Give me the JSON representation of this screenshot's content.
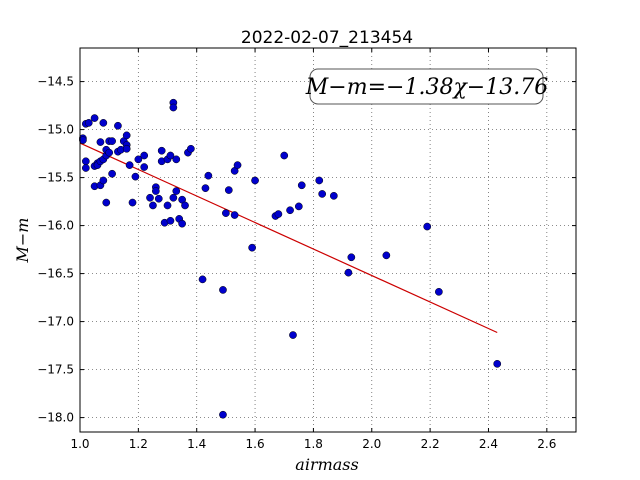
{
  "chart_data": {
    "type": "scatter",
    "title": "2022-02-07_213454",
    "xlabel": "airmass",
    "ylabel": "M−m",
    "xlim": [
      1.0,
      2.7
    ],
    "ylim": [
      -18.15,
      -14.15
    ],
    "y_inverted": true,
    "grid": true,
    "x_ticks": [
      1.0,
      1.2,
      1.4,
      1.6,
      1.8,
      2.0,
      2.2,
      2.4,
      2.6
    ],
    "x_tick_labels": [
      "1.0",
      "1.2",
      "1.4",
      "1.6",
      "1.8",
      "2.0",
      "2.2",
      "2.4",
      "2.6"
    ],
    "y_ticks": [
      -14.5,
      -15.0,
      -15.5,
      -16.0,
      -16.5,
      -17.0,
      -17.5,
      -18.0
    ],
    "y_tick_labels": [
      "−14.5",
      "−15.0",
      "−15.5",
      "−16.0",
      "−16.5",
      "−17.0",
      "−17.5",
      "−18.0"
    ],
    "annotation": "M−m=−1.38χ−13.76",
    "fit": {
      "slope": -1.38,
      "intercept": -13.76,
      "x_range": [
        1.0,
        2.43
      ],
      "color": "#cc0000"
    },
    "marker_color": "#0000cc",
    "points": [
      [
        1.01,
        -15.09
      ],
      [
        1.01,
        -15.11
      ],
      [
        1.02,
        -15.33
      ],
      [
        1.02,
        -15.4
      ],
      [
        1.02,
        -14.94
      ],
      [
        1.03,
        -14.93
      ],
      [
        1.05,
        -14.88
      ],
      [
        1.05,
        -15.38
      ],
      [
        1.05,
        -15.59
      ],
      [
        1.06,
        -15.35
      ],
      [
        1.06,
        -15.37
      ],
      [
        1.07,
        -15.13
      ],
      [
        1.07,
        -15.58
      ],
      [
        1.07,
        -15.33
      ],
      [
        1.08,
        -15.31
      ],
      [
        1.08,
        -15.53
      ],
      [
        1.08,
        -14.93
      ],
      [
        1.09,
        -15.27
      ],
      [
        1.09,
        -15.21
      ],
      [
        1.09,
        -15.76
      ],
      [
        1.1,
        -15.12
      ],
      [
        1.1,
        -15.24
      ],
      [
        1.11,
        -15.12
      ],
      [
        1.11,
        -15.46
      ],
      [
        1.13,
        -15.23
      ],
      [
        1.13,
        -14.96
      ],
      [
        1.14,
        -15.21
      ],
      [
        1.15,
        -15.12
      ],
      [
        1.16,
        -15.06
      ],
      [
        1.16,
        -15.16
      ],
      [
        1.16,
        -15.2
      ],
      [
        1.17,
        -15.37
      ],
      [
        1.18,
        -15.76
      ],
      [
        1.19,
        -15.49
      ],
      [
        1.2,
        -15.31
      ],
      [
        1.22,
        -15.27
      ],
      [
        1.22,
        -15.39
      ],
      [
        1.24,
        -15.71
      ],
      [
        1.25,
        -15.79
      ],
      [
        1.26,
        -15.6
      ],
      [
        1.26,
        -15.64
      ],
      [
        1.27,
        -15.72
      ],
      [
        1.28,
        -15.33
      ],
      [
        1.28,
        -15.22
      ],
      [
        1.29,
        -15.97
      ],
      [
        1.3,
        -15.79
      ],
      [
        1.3,
        -15.31
      ],
      [
        1.31,
        -15.95
      ],
      [
        1.31,
        -15.27
      ],
      [
        1.32,
        -15.71
      ],
      [
        1.32,
        -14.72
      ],
      [
        1.32,
        -14.77
      ],
      [
        1.33,
        -15.31
      ],
      [
        1.33,
        -15.64
      ],
      [
        1.34,
        -15.93
      ],
      [
        1.35,
        -15.98
      ],
      [
        1.35,
        -15.73
      ],
      [
        1.36,
        -15.79
      ],
      [
        1.37,
        -15.24
      ],
      [
        1.38,
        -15.2
      ],
      [
        1.42,
        -16.56
      ],
      [
        1.43,
        -15.61
      ],
      [
        1.44,
        -15.48
      ],
      [
        1.49,
        -16.67
      ],
      [
        1.49,
        -17.97
      ],
      [
        1.5,
        -15.87
      ],
      [
        1.51,
        -15.63
      ],
      [
        1.53,
        -15.89
      ],
      [
        1.53,
        -15.43
      ],
      [
        1.54,
        -15.37
      ],
      [
        1.59,
        -16.23
      ],
      [
        1.6,
        -15.53
      ],
      [
        1.67,
        -15.9
      ],
      [
        1.68,
        -15.88
      ],
      [
        1.7,
        -15.27
      ],
      [
        1.72,
        -15.84
      ],
      [
        1.73,
        -17.14
      ],
      [
        1.75,
        -15.8
      ],
      [
        1.76,
        -15.58
      ],
      [
        1.82,
        -15.53
      ],
      [
        1.83,
        -15.67
      ],
      [
        1.87,
        -15.69
      ],
      [
        1.92,
        -16.49
      ],
      [
        1.93,
        -16.33
      ],
      [
        2.05,
        -16.31
      ],
      [
        2.19,
        -16.01
      ],
      [
        2.23,
        -16.69
      ],
      [
        2.43,
        -17.44
      ]
    ]
  }
}
